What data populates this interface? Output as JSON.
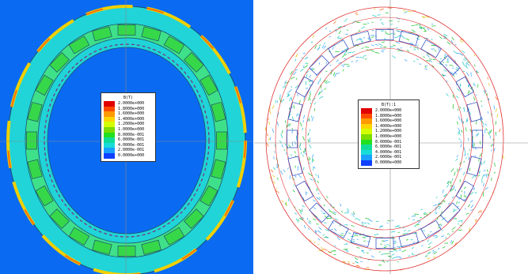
{
  "left": {
    "title": "B(T)",
    "labels": [
      "2.0000e+000",
      "1.8000e+000",
      "1.6000e+000",
      "1.4000e+000",
      "1.2000e+000",
      "1.0000e+000",
      "8.0000e-001",
      "6.0000e-001",
      "4.0000e-001",
      "2.0000e-001",
      "0.0000e+000"
    ]
  },
  "right": {
    "title": "B(T):1",
    "labels": [
      "2.0000e+000",
      "1.8000e+000",
      "1.6000e+000",
      "1.4000e+000",
      "1.2000e+000",
      "1.0000e+000",
      "8.0000e-001",
      "6.0000e-001",
      "4.0000e-001",
      "2.0000e-001",
      "0.0000e+000"
    ]
  },
  "colors": [
    "#e00000",
    "#ff4a00",
    "#ff9a00",
    "#ffd400",
    "#d4ff00",
    "#7ddc00",
    "#22e01e",
    "#10dc9a",
    "#18dcd8",
    "#1aa0ff",
    "#1040ff",
    "#0010d0"
  ]
}
